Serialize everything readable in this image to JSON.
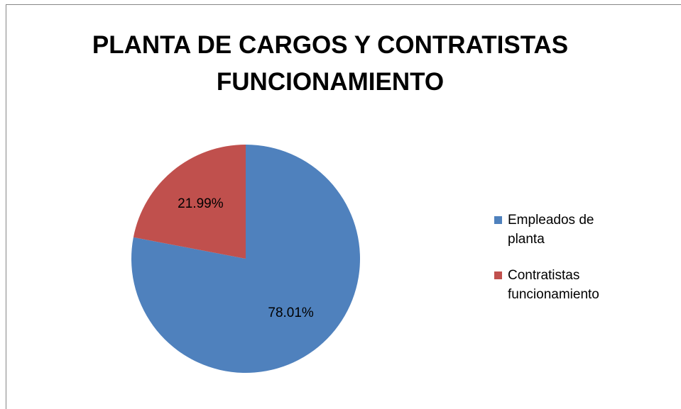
{
  "chart_data": {
    "type": "pie",
    "title": "PLANTA DE CARGOS Y CONTRATISTAS FUNCIONAMIENTO",
    "categories": [
      "Empleados de planta",
      "Contratistas funcionamiento"
    ],
    "values": [
      78.01,
      21.99
    ],
    "value_labels": [
      "78.01%",
      "21.99%"
    ],
    "colors": [
      "#4f81bd",
      "#c0504d"
    ],
    "legend": "right"
  }
}
